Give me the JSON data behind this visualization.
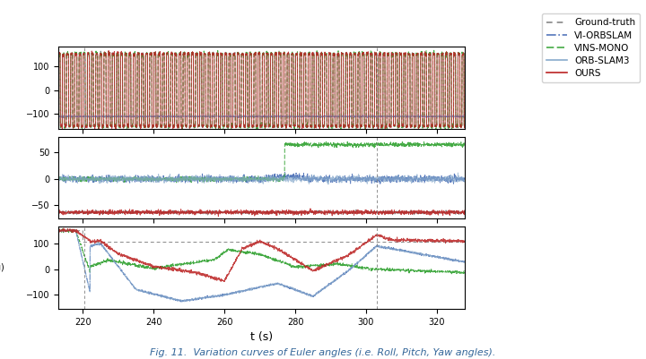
{
  "title": "Fig. 11.  Variation curves of Euler angles (i.e. Roll, Pitch, Yaw angles).",
  "xlabel": "t (s)",
  "xlim": [
    213,
    328
  ],
  "xticks": [
    220,
    240,
    260,
    280,
    300,
    320
  ],
  "colors": {
    "ground_truth": "#888888",
    "vi_orbslam": "#5577BB",
    "vins_mono": "#44AA44",
    "orb_slam3": "#88AACC",
    "ours": "#BB2222"
  },
  "roll_ylim": [
    -160,
    180
  ],
  "roll_yticks": [
    -100,
    0,
    100
  ],
  "pitch_ylim": [
    -75,
    80
  ],
  "pitch_yticks": [
    -50,
    0,
    50
  ],
  "yaw_ylim": [
    -155,
    165
  ],
  "yaw_yticks": [
    -100,
    0,
    100
  ],
  "t_start": 213.0,
  "t_end": 328.0,
  "n_points": 2000,
  "vline1": 220.5,
  "vline2": 303.0
}
